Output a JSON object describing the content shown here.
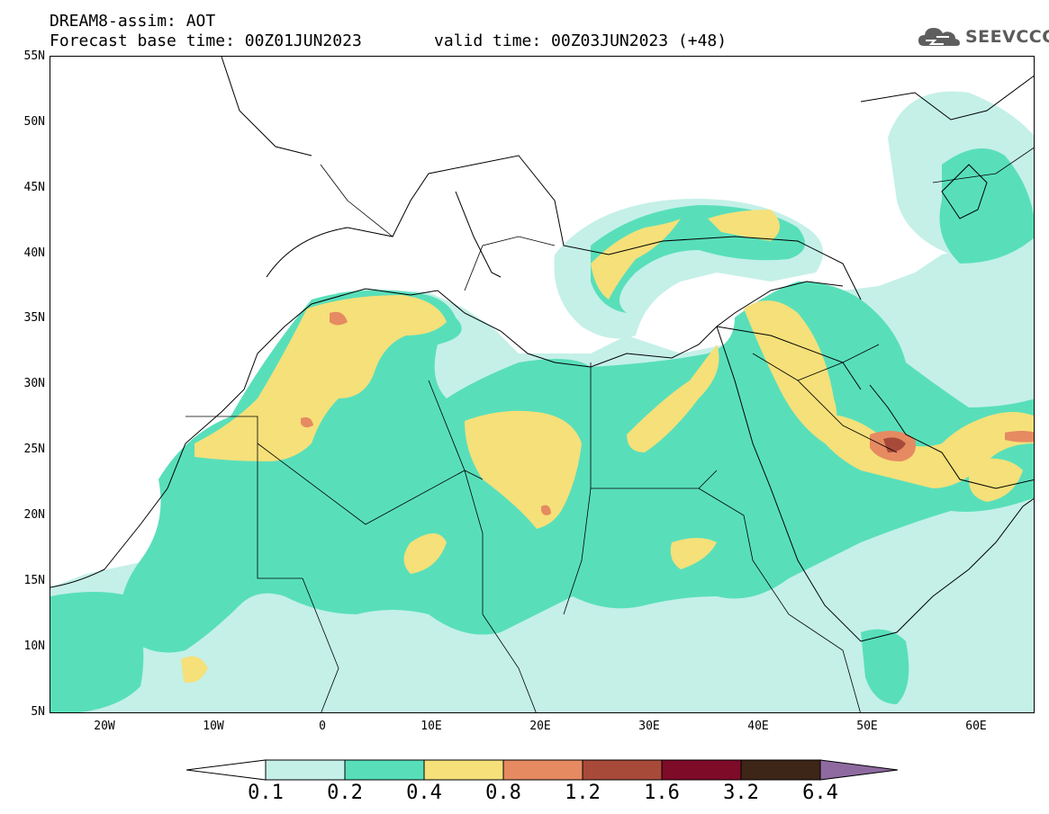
{
  "header": {
    "title_line1": "DREAM8-assim: AOT",
    "base_time": "Forecast base time: 00Z01JUN2023",
    "valid_time": "valid time: 00Z03JUN2023 (+48)"
  },
  "logo": {
    "text": "SEEVCCC",
    "icon": "cloud-icon"
  },
  "axes": {
    "lat_labels": [
      "55N",
      "50N",
      "45N",
      "40N",
      "35N",
      "30N",
      "25N",
      "20N",
      "15N",
      "10N",
      "5N"
    ],
    "lon_labels": [
      "20W",
      "10W",
      "0",
      "10E",
      "20E",
      "30E",
      "40E",
      "50E",
      "60E"
    ]
  },
  "colorbar": {
    "labels": [
      "0.1",
      "0.2",
      "0.4",
      "0.8",
      "1.2",
      "1.6",
      "3.2",
      "6.4"
    ],
    "colors": [
      "#ffffff",
      "#c4f0e8",
      "#58dfba",
      "#f5e07a",
      "#e68a62",
      "#a84a3a",
      "#7e0b28",
      "#3d2617",
      "#8e6aa0"
    ]
  },
  "field_colors": {
    "low": "#c4f0e8",
    "medium": "#58dfba",
    "high": "#f5e07a",
    "very_high": "#e68a62",
    "extreme": "#a84a3a"
  }
}
